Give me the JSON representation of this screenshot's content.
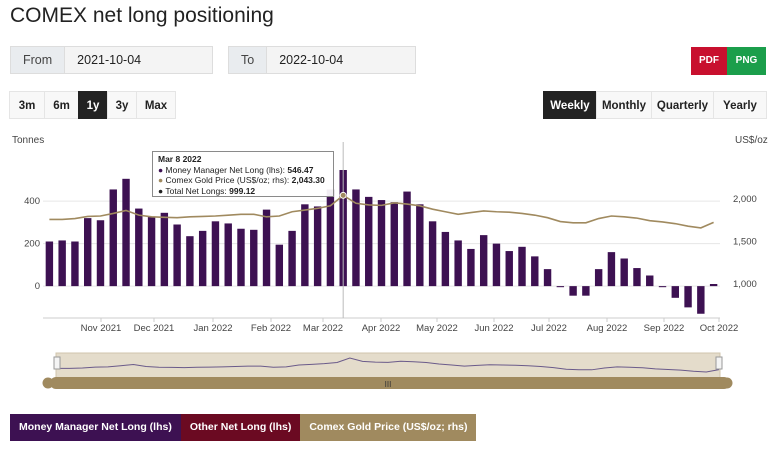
{
  "page": {
    "title": "COMEX net long positioning",
    "from_label": "From",
    "from_value": "2021-10-04",
    "to_label": "To",
    "to_value": "2022-10-04",
    "export_pdf": "PDF",
    "export_png": "PNG",
    "range_buttons": [
      "3m",
      "6m",
      "1y",
      "3y",
      "Max"
    ],
    "range_active": "1y",
    "period_buttons": [
      "Weekly",
      "Monthly",
      "Quarterly",
      "Yearly"
    ],
    "period_active": "Weekly",
    "colors": {
      "mm": "#3d1152",
      "other": "#6b0a22",
      "gold": "#a08a5f",
      "pdf": "#c8102e",
      "png": "#1b9e4b"
    }
  },
  "chart_data": {
    "type": "bar",
    "left_axis_unit": "Tonnes",
    "right_axis_unit": "US$/oz",
    "x_tick_labels": [
      "Nov 2021",
      "Dec 2021",
      "Jan 2022",
      "Feb 2022",
      "Mar 2022",
      "Apr 2022",
      "May 2022",
      "Jun 2022",
      "Jul 2022",
      "Aug 2022",
      "Sep 2022",
      "Oct 2022"
    ],
    "y_left_ticks": [
      0,
      200,
      400
    ],
    "y_left_range": [
      -150,
      650
    ],
    "y_right_ticks": [
      "1,000",
      "1,500",
      "2,000"
    ],
    "y_right_range": [
      600,
      2600
    ],
    "grid": true,
    "series": [
      {
        "name": "Money Manager Net Long (lhs)",
        "kind": "bar",
        "values": [
          210,
          215,
          210,
          320,
          310,
          455,
          505,
          365,
          325,
          345,
          290,
          235,
          260,
          305,
          295,
          270,
          265,
          360,
          195,
          260,
          385,
          375,
          455,
          546.47,
          455,
          420,
          405,
          395,
          445,
          385,
          305,
          255,
          215,
          175,
          240,
          200,
          165,
          185,
          140,
          80,
          -5,
          -45,
          -45,
          80,
          160,
          130,
          85,
          50,
          -5,
          -55,
          -100,
          -130,
          10
        ]
      },
      {
        "name": "Comex Gold Price (US$/oz; rhs)",
        "kind": "line",
        "values": [
          1760,
          1760,
          1770,
          1795,
          1800,
          1830,
          1865,
          1810,
          1790,
          1785,
          1780,
          1790,
          1795,
          1800,
          1810,
          1820,
          1820,
          1790,
          1800,
          1850,
          1870,
          1890,
          1920,
          2043.3,
          1950,
          1930,
          1925,
          1955,
          1940,
          1920,
          1880,
          1850,
          1820,
          1840,
          1860,
          1850,
          1845,
          1830,
          1810,
          1780,
          1735,
          1720,
          1720,
          1770,
          1800,
          1790,
          1775,
          1745,
          1730,
          1710,
          1680,
          1660,
          1725
        ]
      }
    ],
    "tooltip": {
      "date": "Mar 8 2022",
      "mm_label": "Money Manager Net Long (lhs): ",
      "mm_value": "546.47",
      "gold_label": "Comex Gold Price (US$/oz; rhs): ",
      "gold_value": "2,043.30",
      "total_label": "Total Net Longs: ",
      "total_value": "999.12",
      "index": 23
    },
    "legend": [
      "Money Manager Net Long (lhs)",
      "Other Net Long (lhs)",
      "Comex Gold Price (US$/oz; rhs)"
    ],
    "navigator_handle": "III"
  }
}
